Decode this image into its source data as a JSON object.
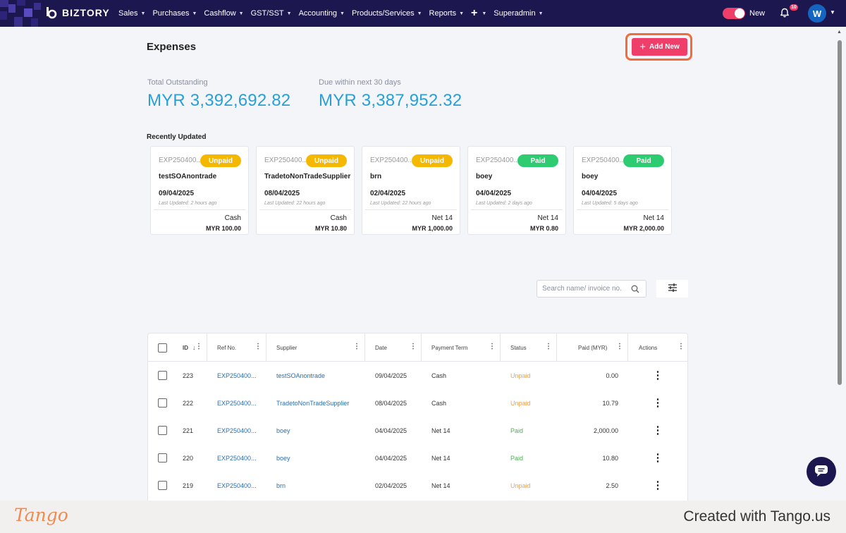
{
  "nav": {
    "brand": "BIZTORY",
    "menu": [
      "Sales",
      "Purchases",
      "Cashflow",
      "GST/SST",
      "Accounting",
      "Products/Services",
      "Reports",
      "+",
      "Superadmin"
    ],
    "toggle_label": "New",
    "notification_count": "10",
    "avatar_initial": "W"
  },
  "header": {
    "title": "Expenses",
    "add_button": "Add New"
  },
  "stats": {
    "outstanding_label": "Total Outstanding",
    "outstanding_value": "MYR 3,392,692.82",
    "due_label": "Due within next 30 days",
    "due_value": "MYR 3,387,952.32"
  },
  "recent": {
    "title": "Recently Updated",
    "cards": [
      {
        "ref": "EXP250400...",
        "status": "Unpaid",
        "name": "testSOAnontrade",
        "date": "09/04/2025",
        "updated": "Last Updated: 2 hours ago",
        "term": "Cash",
        "amount": "MYR 100.00"
      },
      {
        "ref": "EXP250400...",
        "status": "Unpaid",
        "name": "TradetoNonTradeSupplier",
        "date": "08/04/2025",
        "updated": "Last Updated: 22 hours ago",
        "term": "Cash",
        "amount": "MYR 10.80"
      },
      {
        "ref": "EXP250400...",
        "status": "Unpaid",
        "name": "brn",
        "date": "02/04/2025",
        "updated": "Last Updated: 22 hours ago",
        "term": "Net 14",
        "amount": "MYR 1,000.00"
      },
      {
        "ref": "EXP250400...",
        "status": "Paid",
        "name": "boey",
        "date": "04/04/2025",
        "updated": "Last Updated: 2 days ago",
        "term": "Net 14",
        "amount": "MYR 0.80"
      },
      {
        "ref": "EXP250400...",
        "status": "Paid",
        "name": "boey",
        "date": "04/04/2025",
        "updated": "Last Updated: 5 days ago",
        "term": "Net 14",
        "amount": "MYR 2,000.00"
      }
    ]
  },
  "search": {
    "placeholder": "Search name/ invoice no."
  },
  "table": {
    "columns": [
      "ID",
      "Ref No.",
      "Supplier",
      "Date",
      "Payment Term",
      "Status",
      "Paid (MYR)",
      "Actions"
    ],
    "rows": [
      {
        "id": "223",
        "ref": "EXP250400...",
        "supplier": "testSOAnontrade",
        "date": "09/04/2025",
        "term": "Cash",
        "status": "Unpaid",
        "paid": "0.00"
      },
      {
        "id": "222",
        "ref": "EXP250400...",
        "supplier": "TradetoNonTradeSupplier",
        "date": "08/04/2025",
        "term": "Cash",
        "status": "Unpaid",
        "paid": "10.79"
      },
      {
        "id": "221",
        "ref": "EXP250400...",
        "supplier": "boey",
        "date": "04/04/2025",
        "term": "Net 14",
        "status": "Paid",
        "paid": "2,000.00"
      },
      {
        "id": "220",
        "ref": "EXP250400...",
        "supplier": "boey",
        "date": "04/04/2025",
        "term": "Net 14",
        "status": "Paid",
        "paid": "10.80"
      },
      {
        "id": "219",
        "ref": "EXP250400...",
        "supplier": "brn",
        "date": "02/04/2025",
        "term": "Net 14",
        "status": "Unpaid",
        "paid": "2.50"
      }
    ]
  },
  "colors": {
    "nav_bg": "#1d1750",
    "accent": "#ef3e6a",
    "stat_value": "#2a9fd6",
    "unpaid_badge": "#f5b800",
    "paid_badge": "#2ecc71",
    "highlight": "#f26b3a"
  },
  "icons": {
    "brand": "biztory-logo-icon",
    "bell": "bell-icon",
    "search": "search-icon",
    "filter": "sliders-icon",
    "chat": "chat-icon",
    "actions": "kebab-icon"
  },
  "footer": {
    "logo": "Tango",
    "credit": "Created with Tango.us"
  }
}
